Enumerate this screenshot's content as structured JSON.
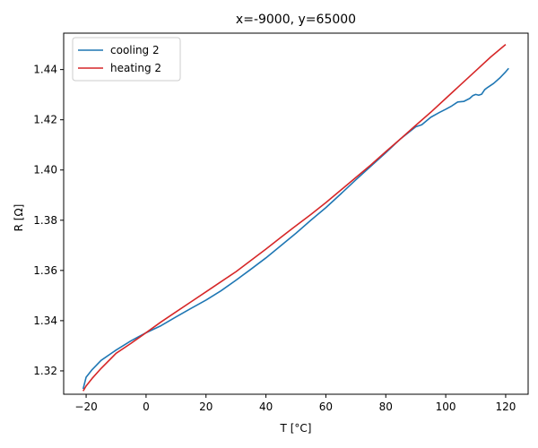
{
  "chart_data": {
    "type": "line",
    "title": "x=-9000, y=65000",
    "xlabel": "T [°C]",
    "ylabel": "R [Ω]",
    "xlim": [
      -27.5,
      127.5
    ],
    "ylim": [
      1.3107,
      1.4545
    ],
    "xticks": [
      -20,
      0,
      20,
      40,
      60,
      80,
      100,
      120
    ],
    "yticks": [
      1.32,
      1.34,
      1.36,
      1.38,
      1.4,
      1.42,
      1.44
    ],
    "xtick_labels": [
      "−20",
      "0",
      "20",
      "40",
      "60",
      "80",
      "100",
      "120"
    ],
    "ytick_labels": [
      "1.32",
      "1.34",
      "1.36",
      "1.38",
      "1.40",
      "1.42",
      "1.44"
    ],
    "grid": false,
    "legend_position": "top-left",
    "series": [
      {
        "name": "cooling 2",
        "color": "#1f77b4",
        "x": [
          121,
          120,
          118,
          116,
          114,
          113,
          112,
          111,
          110,
          109,
          108,
          106,
          104,
          102,
          100,
          98,
          95,
          92,
          90,
          85,
          80,
          75,
          70,
          65,
          60,
          55,
          50,
          45,
          40,
          35,
          30,
          25,
          20,
          15,
          10,
          5,
          0,
          -5,
          -10,
          -15,
          -18,
          -20,
          -21
        ],
        "y": [
          1.4405,
          1.4391,
          1.4366,
          1.4345,
          1.4329,
          1.432,
          1.4302,
          1.4298,
          1.4301,
          1.4296,
          1.4285,
          1.4273,
          1.4271,
          1.4255,
          1.4242,
          1.423,
          1.421,
          1.418,
          1.4172,
          1.4125,
          1.4069,
          1.4015,
          1.3961,
          1.3905,
          1.385,
          1.38,
          1.3748,
          1.3699,
          1.365,
          1.3605,
          1.3561,
          1.3519,
          1.3482,
          1.3449,
          1.3415,
          1.338,
          1.3352,
          1.332,
          1.3283,
          1.3242,
          1.3205,
          1.3175,
          1.3128
        ]
      },
      {
        "name": "heating 2",
        "color": "#d62728",
        "x": [
          -21,
          -20,
          -18,
          -15,
          -10,
          -5,
          0,
          5,
          10,
          15,
          20,
          25,
          30,
          35,
          40,
          45,
          50,
          55,
          60,
          65,
          70,
          75,
          80,
          85,
          90,
          95,
          100,
          105,
          110,
          115,
          120
        ],
        "y": [
          1.312,
          1.314,
          1.317,
          1.321,
          1.327,
          1.331,
          1.3352,
          1.3395,
          1.3435,
          1.3475,
          1.3515,
          1.3555,
          1.3595,
          1.364,
          1.3685,
          1.3732,
          1.3778,
          1.3823,
          1.387,
          1.392,
          1.397,
          1.402,
          1.4073,
          1.4125,
          1.4178,
          1.423,
          1.4285,
          1.434,
          1.4395,
          1.445,
          1.45
        ]
      }
    ]
  }
}
